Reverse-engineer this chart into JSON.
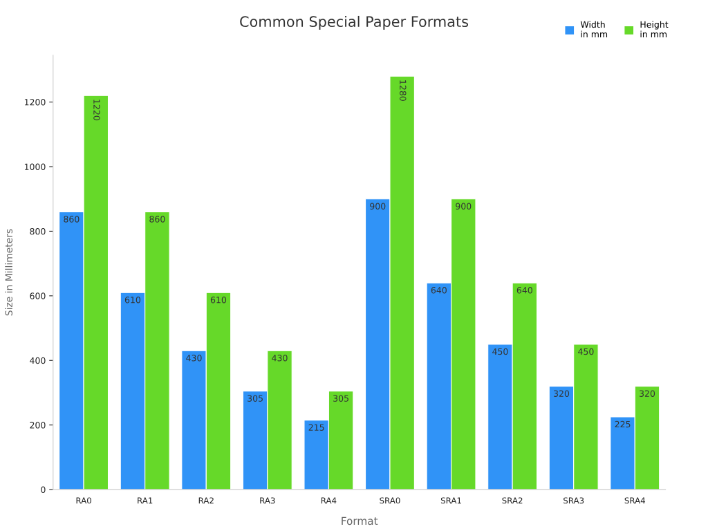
{
  "chart_data": {
    "type": "bar",
    "title": "Common Special Paper Formats",
    "xlabel": "Format",
    "ylabel": "Size in Millimeters",
    "categories": [
      "RA0",
      "RA1",
      "RA2",
      "RA3",
      "RA4",
      "SRA0",
      "SRA1",
      "SRA2",
      "SRA3",
      "SRA4"
    ],
    "series": [
      {
        "name": "Width\nin mm",
        "color": "#3093f7",
        "values": [
          860,
          610,
          430,
          305,
          215,
          900,
          640,
          450,
          320,
          225
        ]
      },
      {
        "name": "Height\nin mm",
        "color": "#66d929",
        "values": [
          1220,
          860,
          610,
          430,
          305,
          1280,
          900,
          640,
          450,
          320
        ]
      }
    ],
    "ylim": [
      0,
      1345
    ],
    "yticks": [
      0,
      200,
      400,
      600,
      800,
      1000,
      1200
    ],
    "grid": false,
    "legend": "top right",
    "data_labels": true
  }
}
